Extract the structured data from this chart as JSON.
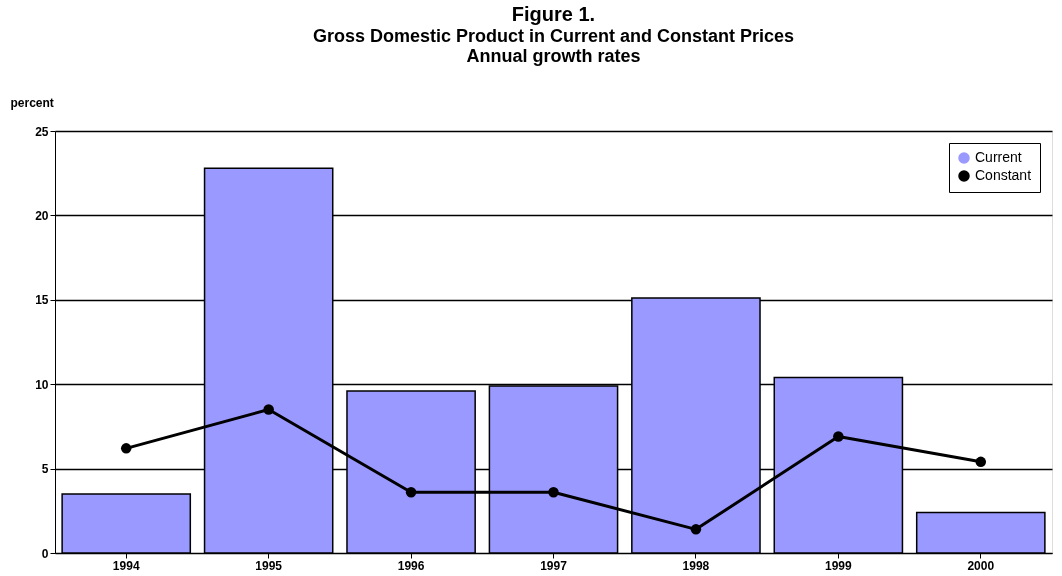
{
  "chart_data": {
    "type": "bar",
    "title": "Figure 1.",
    "subtitle": "Gross Domestic Product in Current and Constant Prices",
    "annotations": [
      "Annual growth rates"
    ],
    "ylabel": "percent",
    "categories": [
      "1994",
      "1995",
      "1996",
      "1997",
      "1998",
      "1999",
      "2000"
    ],
    "series": [
      {
        "name": "Current",
        "color": "#9999ff",
        "values": [
          3.5,
          22.8,
          9.6,
          9.9,
          15.1,
          10.4,
          2.4
        ]
      },
      {
        "name": "Constant",
        "type": "line",
        "color": "#000000",
        "marker": "circle",
        "values": [
          6.2,
          8.5,
          3.6,
          3.6,
          1.4,
          6.9,
          5.4
        ]
      }
    ],
    "ylim": [
      0,
      25
    ],
    "yticks": [
      0,
      5,
      10,
      15,
      20,
      25
    ],
    "grid": "y",
    "legend": "top right"
  }
}
